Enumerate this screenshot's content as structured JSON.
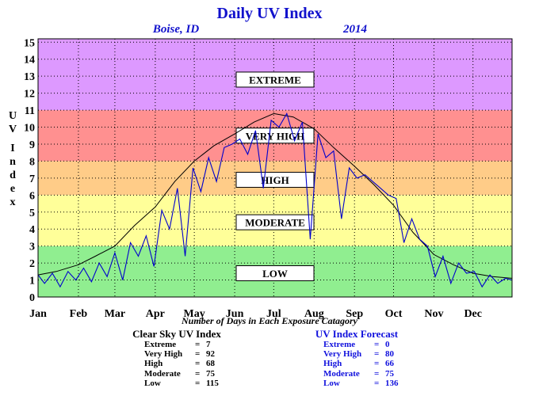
{
  "chart_data": {
    "type": "line",
    "title": "Daily UV Index",
    "subtitle_location": "Boise, ID",
    "subtitle_year": "2014",
    "ylabel": "UV Index",
    "ylim": [
      0,
      15
    ],
    "y_ticks": [
      0,
      1,
      2,
      3,
      4,
      5,
      6,
      7,
      8,
      9,
      10,
      11,
      12,
      13,
      14,
      15
    ],
    "x_month_labels": [
      "Jan",
      "Feb",
      "Mar",
      "Apr",
      "May",
      "Jun",
      "Jul",
      "Aug",
      "Sep",
      "Oct",
      "Nov",
      "Dec"
    ],
    "x_month_start_days": [
      1,
      32,
      60,
      91,
      121,
      152,
      182,
      213,
      244,
      274,
      305,
      335
    ],
    "xlim": [
      1,
      365
    ],
    "grid": true,
    "bands": [
      {
        "label": "LOW",
        "from": 0,
        "to": 3,
        "color": "#90ee90"
      },
      {
        "label": "MODERATE",
        "from": 3,
        "to": 6,
        "color": "#ffff99"
      },
      {
        "label": "HIGH",
        "from": 6,
        "to": 8,
        "color": "#ffcc88"
      },
      {
        "label": "VERY HIGH",
        "from": 8,
        "to": 11,
        "color": "#ff9090"
      },
      {
        "label": "EXTREME",
        "from": 11,
        "to": 15.2,
        "color": "#dd99ff"
      }
    ],
    "series": [
      {
        "name": "Clear Sky UV Index",
        "color": "#000000",
        "x": [
          1,
          15,
          32,
          45,
          60,
          75,
          91,
          106,
          121,
          136,
          152,
          167,
          182,
          197,
          213,
          228,
          244,
          259,
          274,
          289,
          305,
          320,
          335,
          350,
          365
        ],
        "y": [
          1.3,
          1.5,
          1.9,
          2.4,
          3.0,
          4.2,
          5.3,
          6.8,
          8.0,
          8.9,
          9.6,
          10.3,
          10.8,
          10.6,
          9.9,
          8.8,
          7.7,
          6.6,
          5.4,
          3.8,
          2.5,
          1.9,
          1.4,
          1.2,
          1.1
        ]
      },
      {
        "name": "UV Index Forecast",
        "color": "#0000cc",
        "x": [
          1,
          6,
          12,
          18,
          24,
          30,
          36,
          42,
          48,
          54,
          60,
          66,
          72,
          78,
          84,
          90,
          96,
          102,
          108,
          114,
          120,
          126,
          132,
          138,
          144,
          150,
          156,
          162,
          168,
          174,
          180,
          186,
          192,
          198,
          204,
          210,
          216,
          222,
          228,
          234,
          240,
          246,
          252,
          258,
          264,
          270,
          276,
          282,
          288,
          294,
          300,
          306,
          312,
          318,
          324,
          330,
          336,
          342,
          348,
          354,
          360,
          365
        ],
        "y": [
          1.3,
          0.8,
          1.4,
          0.6,
          1.5,
          1.0,
          1.7,
          0.9,
          2.0,
          1.2,
          2.6,
          1.0,
          3.2,
          2.4,
          3.6,
          1.8,
          5.1,
          4.0,
          6.4,
          2.4,
          7.6,
          6.2,
          8.2,
          6.8,
          8.8,
          9.0,
          9.3,
          8.4,
          9.8,
          6.4,
          10.4,
          10.0,
          10.8,
          9.2,
          10.3,
          3.4,
          9.6,
          8.2,
          8.6,
          4.6,
          7.6,
          7.0,
          7.2,
          6.8,
          6.4,
          6.0,
          5.8,
          3.2,
          4.6,
          3.4,
          3.0,
          1.2,
          2.4,
          0.8,
          2.0,
          1.4,
          1.5,
          0.6,
          1.3,
          0.8,
          1.1,
          1.0
        ]
      }
    ],
    "footer_note": "Number of Days in Each Exposure Catagory",
    "clear_sky_stats": {
      "header": "Clear Sky UV Index",
      "rows": [
        {
          "label": "Extreme",
          "value": "7"
        },
        {
          "label": "Very High",
          "value": "92"
        },
        {
          "label": "High",
          "value": "68"
        },
        {
          "label": "Moderate",
          "value": "75"
        },
        {
          "label": "Low",
          "value": "115"
        }
      ]
    },
    "forecast_stats": {
      "header": "UV Index Forecast",
      "rows": [
        {
          "label": "Extreme",
          "value": "0"
        },
        {
          "label": "Very High",
          "value": "80"
        },
        {
          "label": "High",
          "value": "66"
        },
        {
          "label": "Moderate",
          "value": "75"
        },
        {
          "label": "Low",
          "value": "136"
        }
      ]
    },
    "colors": {
      "clear_sky_line": "#000000",
      "forecast_line": "#0000cc",
      "title": "#1111cc"
    }
  }
}
